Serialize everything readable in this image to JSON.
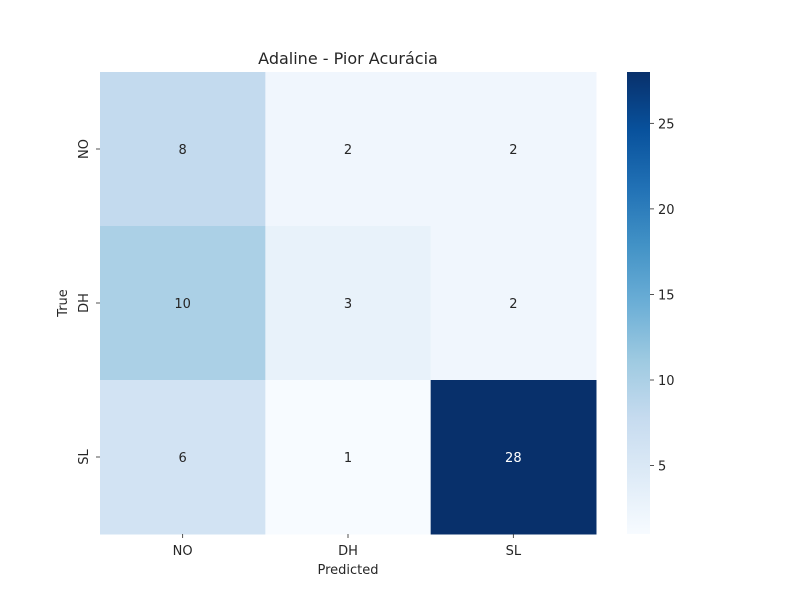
{
  "chart_data": {
    "type": "heatmap",
    "title": "Adaline - Pior Acurácia",
    "xlabel": "Predicted",
    "ylabel": "True",
    "x_categories": [
      "NO",
      "DH",
      "SL"
    ],
    "y_categories": [
      "NO",
      "DH",
      "SL"
    ],
    "values": [
      [
        8,
        2,
        2
      ],
      [
        10,
        3,
        2
      ],
      [
        6,
        1,
        28
      ]
    ],
    "colormap": "Blues",
    "colorbar": {
      "range": [
        1,
        28
      ],
      "ticks": [
        5,
        10,
        15,
        20,
        25
      ]
    }
  }
}
